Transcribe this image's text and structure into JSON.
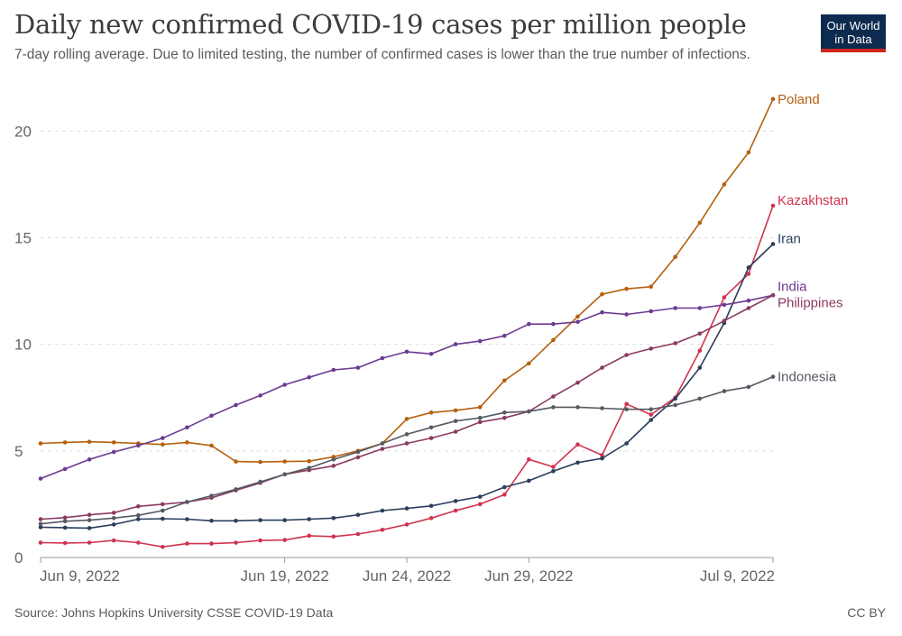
{
  "header": {
    "title": "Daily new confirmed COVID-19 cases per million people",
    "subtitle": "7-day rolling average. Due to limited testing, the number of confirmed cases is lower than the true number of infections.",
    "logo_line1": "Our World",
    "logo_line2": "in Data"
  },
  "footer": {
    "source": "Source: Johns Hopkins University CSSE COVID-19 Data",
    "license": "CC BY"
  },
  "chart_data": {
    "type": "line",
    "title": "Daily new confirmed COVID-19 cases per million people",
    "subtitle": "7-day rolling average. Due to limited testing, the number of confirmed cases is lower than the true number of infections.",
    "x": [
      "2022-06-09",
      "2022-06-10",
      "2022-06-11",
      "2022-06-12",
      "2022-06-13",
      "2022-06-14",
      "2022-06-15",
      "2022-06-16",
      "2022-06-17",
      "2022-06-18",
      "2022-06-19",
      "2022-06-20",
      "2022-06-21",
      "2022-06-22",
      "2022-06-23",
      "2022-06-24",
      "2022-06-25",
      "2022-06-26",
      "2022-06-27",
      "2022-06-28",
      "2022-06-29",
      "2022-06-30",
      "2022-07-01",
      "2022-07-02",
      "2022-07-03",
      "2022-07-04",
      "2022-07-05",
      "2022-07-06",
      "2022-07-07",
      "2022-07-08",
      "2022-07-09"
    ],
    "x_ticks": [
      {
        "date": "2022-06-09",
        "label": "Jun 9, 2022"
      },
      {
        "date": "2022-06-19",
        "label": "Jun 19, 2022"
      },
      {
        "date": "2022-06-24",
        "label": "Jun 24, 2022"
      },
      {
        "date": "2022-06-29",
        "label": "Jun 29, 2022"
      },
      {
        "date": "2022-07-09",
        "label": "Jul 9, 2022"
      }
    ],
    "y_ticks": [
      0,
      5,
      10,
      15,
      20
    ],
    "ylim": [
      0,
      22
    ],
    "grid": "horizontal-dashed",
    "legend": "line-end labels",
    "series": [
      {
        "name": "Poland",
        "color": "#b5600e",
        "values": [
          5.35,
          5.4,
          5.43,
          5.4,
          5.35,
          5.3,
          5.4,
          5.25,
          4.5,
          4.48,
          4.5,
          4.52,
          4.72,
          5.0,
          5.35,
          6.5,
          6.8,
          6.9,
          7.05,
          8.3,
          9.1,
          10.2,
          11.3,
          12.35,
          12.6,
          12.7,
          14.1,
          15.7,
          17.5,
          19.0,
          21.5
        ]
      },
      {
        "name": "Kazakhstan",
        "color": "#d0334e",
        "values": [
          0.7,
          0.68,
          0.7,
          0.8,
          0.7,
          0.5,
          0.65,
          0.65,
          0.7,
          0.8,
          0.82,
          1.02,
          0.98,
          1.1,
          1.3,
          1.55,
          1.85,
          2.2,
          2.5,
          2.95,
          4.6,
          4.25,
          5.3,
          4.8,
          7.2,
          6.7,
          7.5,
          9.7,
          12.2,
          13.3,
          16.5
        ]
      },
      {
        "name": "Iran",
        "color": "#2c3e5c",
        "values": [
          1.42,
          1.4,
          1.38,
          1.55,
          1.8,
          1.82,
          1.8,
          1.72,
          1.72,
          1.75,
          1.75,
          1.8,
          1.85,
          2.0,
          2.2,
          2.3,
          2.42,
          2.65,
          2.85,
          3.3,
          3.6,
          4.05,
          4.45,
          4.65,
          5.35,
          6.45,
          7.45,
          8.9,
          11.0,
          13.6,
          14.7
        ]
      },
      {
        "name": "India",
        "color": "#6b3b92",
        "values": [
          3.7,
          4.15,
          4.6,
          4.95,
          5.25,
          5.6,
          6.1,
          6.65,
          7.15,
          7.6,
          8.1,
          8.45,
          8.8,
          8.9,
          9.35,
          9.65,
          9.55,
          10.0,
          10.15,
          10.4,
          10.95,
          10.95,
          11.05,
          11.5,
          11.4,
          11.55,
          11.7,
          11.7,
          11.85,
          12.05,
          12.3
        ]
      },
      {
        "name": "Philippines",
        "color": "#8b3a62",
        "values": [
          1.8,
          1.87,
          2.0,
          2.1,
          2.4,
          2.5,
          2.6,
          2.8,
          3.15,
          3.5,
          3.9,
          4.1,
          4.3,
          4.7,
          5.1,
          5.35,
          5.6,
          5.9,
          6.35,
          6.55,
          6.85,
          7.55,
          8.2,
          8.9,
          9.5,
          9.8,
          10.05,
          10.5,
          11.1,
          11.7,
          12.3
        ]
      },
      {
        "name": "Indonesia",
        "color": "#555a62",
        "values": [
          1.58,
          1.7,
          1.75,
          1.85,
          1.98,
          2.2,
          2.6,
          2.9,
          3.2,
          3.55,
          3.9,
          4.2,
          4.6,
          4.95,
          5.35,
          5.78,
          6.1,
          6.4,
          6.55,
          6.8,
          6.85,
          7.05,
          7.05,
          7.0,
          6.95,
          6.95,
          7.15,
          7.45,
          7.8,
          8.0,
          8.48
        ]
      }
    ]
  }
}
